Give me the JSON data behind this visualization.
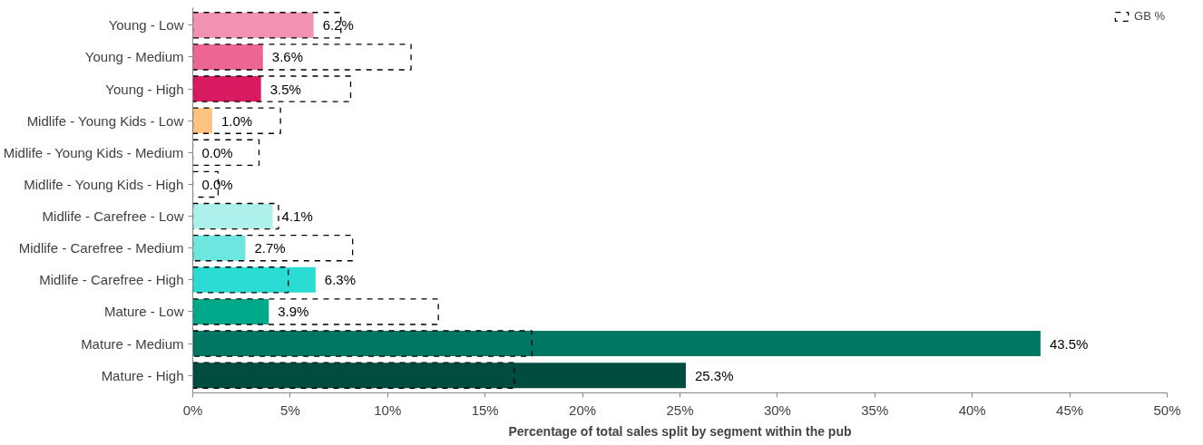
{
  "chart_data": {
    "type": "bar",
    "orientation": "horizontal",
    "xlabel": "Percentage of total sales split by segment within the pub",
    "categories": [
      "Young - Low",
      "Young - Medium",
      "Young - High",
      "Midlife - Young Kids - Low",
      "Midlife - Young Kids - Medium",
      "Midlife - Young Kids - High",
      "Midlife - Carefree - Low",
      "Midlife - Carefree - Medium",
      "Midlife - Carefree - High",
      "Mature - Low",
      "Mature - Medium",
      "Mature - High"
    ],
    "series": [
      {
        "values": [
          6.2,
          3.6,
          3.5,
          1.0,
          0.0,
          0.0,
          4.1,
          2.7,
          6.3,
          3.9,
          43.5,
          25.3
        ],
        "colors": [
          "#f292b3",
          "#ec6593",
          "#d81b60",
          "#ffc380",
          "#ffb060",
          "#ff9f40",
          "#aef0ec",
          "#6ee6e0",
          "#2adcd4",
          "#00a88a",
          "#007763",
          "#004d3f"
        ],
        "value_labels": [
          "6.2%",
          "3.6%",
          "3.5%",
          "1.0%",
          "0.0%",
          "0.0%",
          "4.1%",
          "2.7%",
          "6.3%",
          "3.9%",
          "43.5%",
          "25.3%"
        ]
      },
      {
        "name": "GB %",
        "color": "#000000",
        "line_style": "dashed",
        "values": [
          7.6,
          11.2,
          8.1,
          4.5,
          3.4,
          1.3,
          4.4,
          8.2,
          4.9,
          12.6,
          17.4,
          16.5
        ]
      }
    ],
    "xlim": [
      0,
      50
    ],
    "xticks": [
      {
        "value": 0,
        "label": "0%"
      },
      {
        "value": 5,
        "label": "5%"
      },
      {
        "value": 10,
        "label": "10%"
      },
      {
        "value": 15,
        "label": "15%"
      },
      {
        "value": 20,
        "label": "20%"
      },
      {
        "value": 25,
        "label": "25%"
      },
      {
        "value": 30,
        "label": "30%"
      },
      {
        "value": 35,
        "label": "35%"
      },
      {
        "value": 40,
        "label": "40%"
      },
      {
        "value": 45,
        "label": "45%"
      },
      {
        "value": 50,
        "label": "50%"
      }
    ],
    "grid": false,
    "legend": "top right"
  }
}
